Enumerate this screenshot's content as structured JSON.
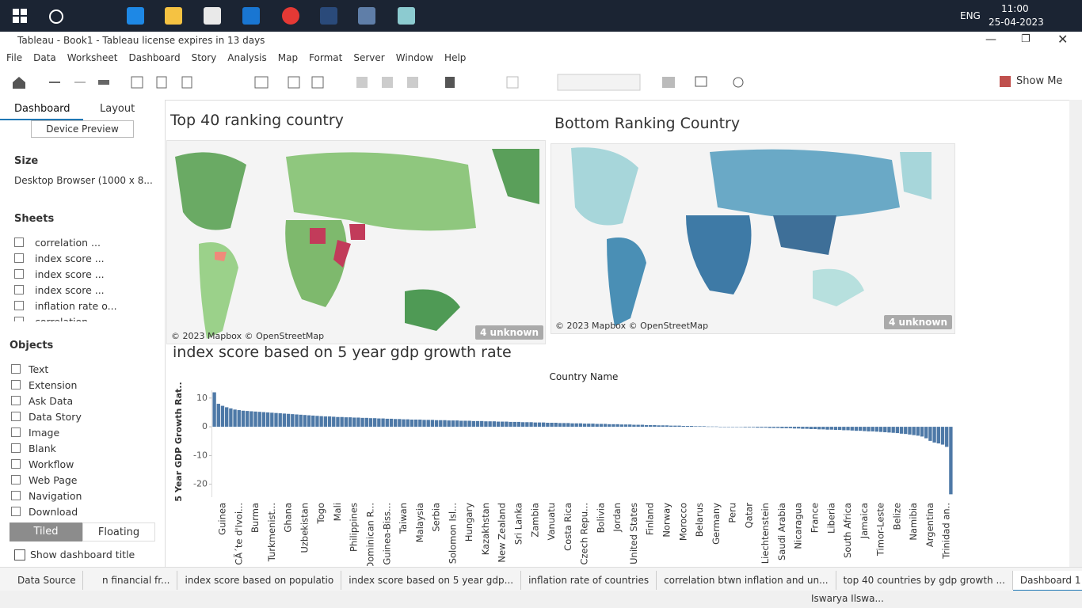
{
  "taskbar": {
    "language": "ENG",
    "time": "11:00",
    "date": "25-04-2023"
  },
  "window": {
    "title": "Tableau - Book1 - Tableau license expires in 13 days"
  },
  "menu": [
    "File",
    "Data",
    "Worksheet",
    "Dashboard",
    "Story",
    "Analysis",
    "Map",
    "Format",
    "Server",
    "Window",
    "Help"
  ],
  "toolbar": {
    "show_me": "Show Me"
  },
  "side_panel": {
    "tabs": [
      "Dashboard",
      "Layout"
    ],
    "device_preview": "Device Preview",
    "size_heading": "Size",
    "size_value": "Desktop Browser (1000 x 8...",
    "sheets_heading": "Sheets",
    "sheets": [
      "correlation ...",
      "index score ...",
      "index score ...",
      "index score ...",
      "inflation rate o...",
      "correlation..."
    ],
    "objects_heading": "Objects",
    "objects": [
      "Text",
      "Extension",
      "Ask Data",
      "Data Story",
      "Image",
      "Blank",
      "Workflow",
      "Web Page",
      "Navigation",
      "Download"
    ],
    "layout_modes": [
      "Tiled",
      "Floating"
    ],
    "show_title": "Show dashboard title"
  },
  "maps": [
    {
      "title": "Top 40 ranking country",
      "attribution": "© 2023 Mapbox © OpenStreetMap",
      "unknown": "4 unknown"
    },
    {
      "title": "Bottom Ranking Country",
      "attribution": "© 2023 Mapbox © OpenStreetMap",
      "unknown": "4 unknown"
    }
  ],
  "chart_data": {
    "type": "bar",
    "title": "index score based on 5 year gdp growth rate",
    "x_label": "Country Name",
    "y_label": "5 Year GDP Growth Rat..",
    "color": "#4e79a7",
    "ylim": [
      -24.5,
      12.7
    ],
    "yticks": [
      10,
      0,
      -10,
      -20
    ],
    "grid": false,
    "categories": [
      null,
      null,
      "Guinea",
      null,
      null,
      null,
      "CÃ´te d'Ivoi...",
      null,
      null,
      null,
      "Burma",
      null,
      null,
      null,
      "Turkmenist...",
      null,
      null,
      null,
      "Ghana",
      null,
      null,
      null,
      "Uzbekistan",
      null,
      null,
      null,
      "Togo",
      null,
      null,
      null,
      "Mali",
      null,
      null,
      null,
      "Philippines",
      null,
      null,
      null,
      "Dominican R...",
      null,
      null,
      null,
      "Guinea-Biss...",
      null,
      null,
      null,
      "Taiwan",
      null,
      null,
      null,
      "Malaysia",
      null,
      null,
      null,
      "Serbia",
      null,
      null,
      null,
      "Solomon Isl...",
      null,
      null,
      null,
      "Hungary",
      null,
      null,
      null,
      "Kazakhstan",
      null,
      null,
      null,
      "New Zealand",
      null,
      null,
      null,
      "Sri Lanka",
      null,
      null,
      null,
      "Zambia",
      null,
      null,
      null,
      "Vanuatu",
      null,
      null,
      null,
      "Costa Rica",
      null,
      null,
      null,
      "Czech Repu...",
      null,
      null,
      null,
      "Bolivia",
      null,
      null,
      null,
      "Jordan",
      null,
      null,
      null,
      "United States",
      null,
      null,
      null,
      "Finland",
      null,
      null,
      null,
      "Norway",
      null,
      null,
      null,
      "Morocco",
      null,
      null,
      null,
      "Belarus",
      null,
      null,
      null,
      "Germany",
      null,
      null,
      null,
      "Peru",
      null,
      null,
      null,
      "Qatar",
      null,
      null,
      null,
      "Liechtenstein",
      null,
      null,
      null,
      "Saudi Arabia",
      null,
      null,
      null,
      "Nicaragua",
      null,
      null,
      null,
      "France",
      null,
      null,
      null,
      "Liberia",
      null,
      null,
      null,
      "South Africa",
      null,
      null,
      null,
      "Jamaica",
      null,
      null,
      null,
      "Timor-Leste",
      null,
      null,
      null,
      "Belize",
      null,
      null,
      null,
      "Namibia",
      null,
      null,
      null,
      "Argentina",
      null,
      null,
      null,
      "Trinidad an..",
      null
    ],
    "values": [
      12,
      8,
      7.3,
      6.8,
      6.4,
      6,
      5.8,
      5.6,
      5.5,
      5.4,
      5.3,
      5.2,
      5.1,
      5,
      4.9,
      4.8,
      4.7,
      4.6,
      4.5,
      4.4,
      4.3,
      4.2,
      4.1,
      4,
      3.9,
      3.8,
      3.7,
      3.6,
      3.6,
      3.5,
      3.4,
      3.4,
      3.3,
      3.3,
      3.2,
      3.2,
      3.1,
      3.1,
      3,
      3,
      2.9,
      2.9,
      2.8,
      2.8,
      2.7,
      2.7,
      2.6,
      2.6,
      2.5,
      2.5,
      2.5,
      2.4,
      2.4,
      2.4,
      2.3,
      2.3,
      2.3,
      2.2,
      2.2,
      2.2,
      2.1,
      2.1,
      2.1,
      2,
      2,
      2,
      1.9,
      1.9,
      1.9,
      1.8,
      1.8,
      1.8,
      1.7,
      1.7,
      1.7,
      1.6,
      1.6,
      1.6,
      1.5,
      1.5,
      1.5,
      1.4,
      1.4,
      1.4,
      1.3,
      1.3,
      1.3,
      1.2,
      1.2,
      1.2,
      1.1,
      1.1,
      1.1,
      1,
      1,
      1,
      0.9,
      0.9,
      0.9,
      0.8,
      0.8,
      0.8,
      0.7,
      0.7,
      0.7,
      0.6,
      0.6,
      0.6,
      0.5,
      0.5,
      0.5,
      0.4,
      0.4,
      0.4,
      0.3,
      0.3,
      0.3,
      0.2,
      0.2,
      0.2,
      0.1,
      0.1,
      0.1,
      0,
      0,
      0,
      -0.1,
      -0.1,
      -0.1,
      -0.2,
      -0.2,
      -0.2,
      -0.3,
      -0.3,
      -0.3,
      -0.4,
      -0.4,
      -0.4,
      -0.5,
      -0.5,
      -0.5,
      -0.6,
      -0.6,
      -0.7,
      -0.7,
      -0.8,
      -0.8,
      -0.9,
      -0.9,
      -1,
      -1,
      -1.1,
      -1.1,
      -1.2,
      -1.2,
      -1.3,
      -1.4,
      -1.4,
      -1.5,
      -1.6,
      -1.6,
      -1.7,
      -1.8,
      -1.9,
      -2,
      -2.1,
      -2.2,
      -2.4,
      -2.5,
      -2.7,
      -2.9,
      -3.1,
      -3.4,
      -4,
      -4.9,
      -5.5,
      -5.8,
      -6.2,
      -7,
      -23.5
    ]
  },
  "sheet_tabs": {
    "data_source": "Data Source",
    "tabs": [
      "n financial fr...",
      "index score based on populatio",
      "index score based on 5 year gdp...",
      "inflation rate of countries",
      "correlation btwn inflation and un...",
      "top 40 countries by gdp growth ...",
      "Dashboard 1"
    ]
  },
  "status": {
    "user": "Iswarya Ilswa..."
  }
}
